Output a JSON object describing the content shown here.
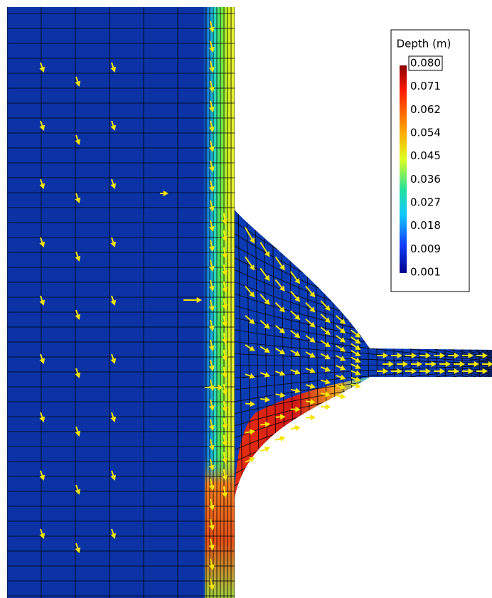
{
  "colorbar": {
    "title": "Depth (m)",
    "labels": [
      "0.080",
      "0.071",
      "0.062",
      "0.054",
      "0.045",
      "0.036",
      "0.027",
      "0.018",
      "0.009",
      "0.001"
    ]
  }
}
